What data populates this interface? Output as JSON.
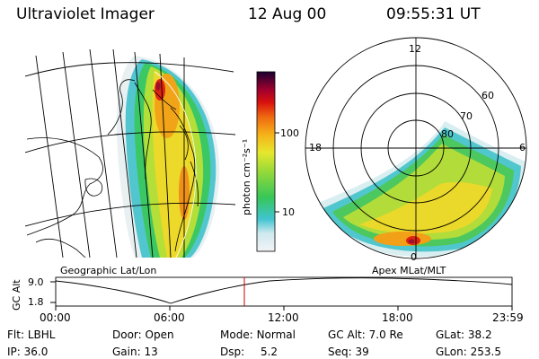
{
  "header": {
    "instrument": "Ultraviolet Imager",
    "date": "12 Aug 00",
    "time": "09:55:31 UT"
  },
  "geo_panel": {
    "label": "Geographic Lat/Lon"
  },
  "polar_panel": {
    "label": "Apex MLat/MLT",
    "mlt_labels": [
      "12",
      "18",
      "6",
      "0"
    ],
    "lat_labels": [
      "60",
      "70",
      "80"
    ]
  },
  "colorbar": {
    "unit_label": "photon cm⁻²s⁻¹",
    "ticks": [
      "100",
      "10"
    ]
  },
  "gc_alt_plot": {
    "ylabel": "GC Alt",
    "yticks": [
      "9.0",
      "1.8"
    ],
    "xticks": [
      "00:00",
      "06:00",
      "12:00",
      "18:00",
      "23:59"
    ],
    "marker_time": "09:55"
  },
  "info": {
    "filter": {
      "key": "Flt:",
      "value": "LBHL"
    },
    "ip": {
      "key": "IP:",
      "value": "36.0"
    },
    "door": {
      "key": "Door:",
      "value": "Open"
    },
    "gain": {
      "key": "Gain:",
      "value": "13"
    },
    "mode": {
      "key": "Mode:",
      "value": "Normal"
    },
    "dsp": {
      "key": "Dsp:",
      "value": "5.2"
    },
    "gcalt": {
      "key": "GC Alt:",
      "value": "7.0 Re"
    },
    "seq": {
      "key": "Seq:",
      "value": "39"
    },
    "glat": {
      "key": "GLat:",
      "value": "38.2"
    },
    "glon": {
      "key": "GLon:",
      "value": "253.5"
    }
  },
  "colors": {
    "marker_line": "#cc0000",
    "colormap": [
      "#e8eef2",
      "#9fd9e6",
      "#33c0c8",
      "#2fc46a",
      "#7fd843",
      "#d9e630",
      "#f4c020",
      "#f08a10",
      "#e03010",
      "#b00028",
      "#7a0050",
      "#1a0030"
    ]
  }
}
